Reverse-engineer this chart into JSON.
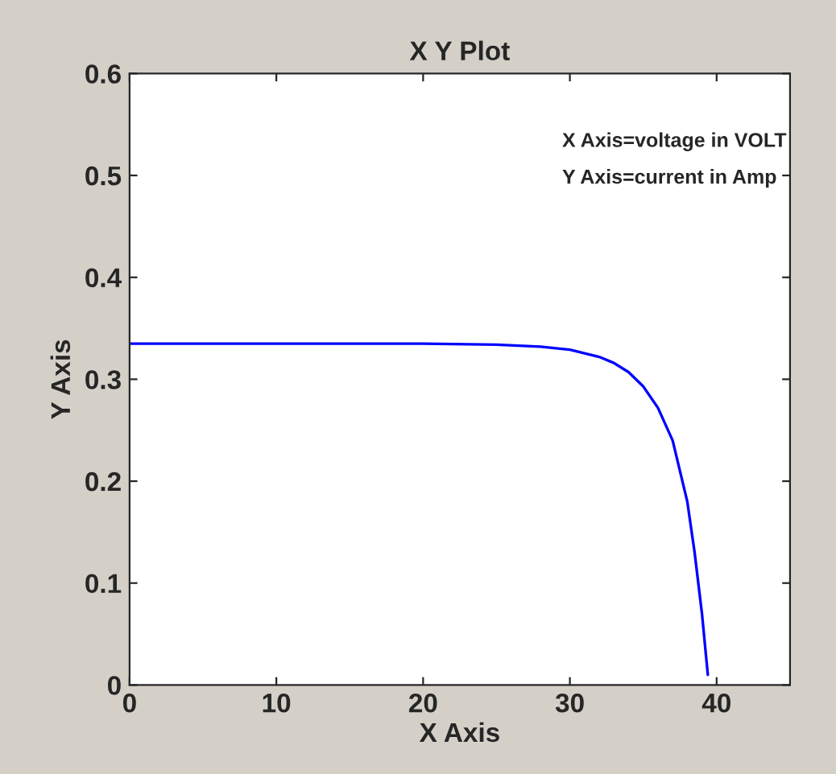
{
  "chart_data": {
    "type": "line",
    "title": "X Y Plot",
    "xlabel": "X Axis",
    "ylabel": "Y Axis",
    "annotations": [
      "X Axis=voltage in VOLT",
      "Y Axis=current in Amp"
    ],
    "series": [
      {
        "color": "#0000ff",
        "x": [
          0,
          5,
          10,
          15,
          20,
          25,
          28,
          30,
          32,
          33,
          34,
          35,
          36,
          37,
          38,
          38.5,
          39,
          39.4
        ],
        "values": [
          0.335,
          0.335,
          0.335,
          0.335,
          0.335,
          0.334,
          0.332,
          0.329,
          0.322,
          0.316,
          0.307,
          0.293,
          0.272,
          0.24,
          0.18,
          0.13,
          0.07,
          0.01
        ]
      }
    ],
    "xlim": [
      0,
      45
    ],
    "xticks": [
      0,
      10,
      20,
      30,
      40
    ],
    "ylim": [
      0,
      0.6
    ],
    "yticks": [
      0,
      0.1,
      0.2,
      0.3,
      0.4,
      0.5,
      0.6
    ],
    "grid": false
  }
}
